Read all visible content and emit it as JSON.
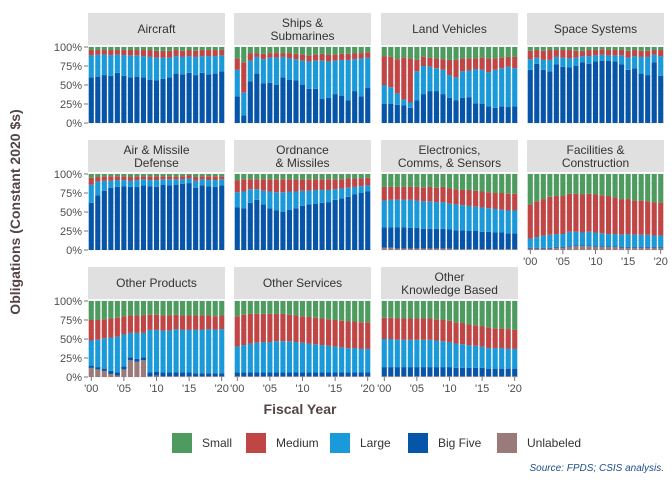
{
  "chart_data": {
    "type": "bar",
    "stacked": true,
    "normalized": true,
    "xlabel": "Fiscal Year",
    "ylabel": "Obligations (Constant 2020 $s)",
    "source": "Source: FPDS; CSIS analysis.",
    "x": [
      2000,
      2001,
      2002,
      2003,
      2004,
      2005,
      2006,
      2007,
      2008,
      2009,
      2010,
      2011,
      2012,
      2013,
      2014,
      2015,
      2016,
      2017,
      2018,
      2019,
      2020
    ],
    "x_tick_labels": [
      "'00",
      "'05",
      "'10",
      "'15",
      "'20"
    ],
    "y_tick_labels": [
      "0%",
      "25%",
      "50%",
      "75%",
      "100%"
    ],
    "ylim": [
      0,
      1
    ],
    "legend": {
      "position": "bottom",
      "entries": [
        {
          "name": "Small",
          "color": "#4d9b5f"
        },
        {
          "name": "Medium",
          "color": "#c04545"
        },
        {
          "name": "Large",
          "color": "#1a9ad9"
        },
        {
          "name": "Big Five",
          "color": "#0655a8"
        },
        {
          "name": "Unlabeled",
          "color": "#9b7a7a"
        }
      ]
    },
    "panels": [
      {
        "title": "Aircraft",
        "unlabeled": [
          0,
          0,
          0,
          0,
          0,
          0,
          0,
          0,
          0,
          0,
          0,
          0,
          0,
          0,
          0,
          0,
          0,
          0,
          0,
          0,
          0
        ],
        "big_five": [
          0.6,
          0.61,
          0.63,
          0.62,
          0.66,
          0.62,
          0.6,
          0.61,
          0.6,
          0.57,
          0.56,
          0.58,
          0.6,
          0.65,
          0.64,
          0.66,
          0.63,
          0.66,
          0.64,
          0.65,
          0.68
        ],
        "large": [
          0.29,
          0.29,
          0.27,
          0.27,
          0.24,
          0.27,
          0.29,
          0.28,
          0.28,
          0.3,
          0.3,
          0.28,
          0.26,
          0.23,
          0.23,
          0.22,
          0.24,
          0.22,
          0.24,
          0.23,
          0.21
        ],
        "medium": [
          0.07,
          0.06,
          0.06,
          0.07,
          0.06,
          0.07,
          0.07,
          0.07,
          0.08,
          0.09,
          0.09,
          0.09,
          0.09,
          0.08,
          0.08,
          0.08,
          0.08,
          0.08,
          0.08,
          0.08,
          0.07
        ]
      },
      {
        "title": "Ships & Submarines",
        "unlabeled": [
          0,
          0,
          0,
          0,
          0,
          0,
          0,
          0,
          0,
          0,
          0,
          0,
          0,
          0,
          0,
          0,
          0,
          0,
          0,
          0,
          0
        ],
        "big_five": [
          0.35,
          0.1,
          0.55,
          0.65,
          0.52,
          0.53,
          0.5,
          0.6,
          0.57,
          0.56,
          0.5,
          0.45,
          0.45,
          0.32,
          0.33,
          0.38,
          0.36,
          0.3,
          0.42,
          0.35,
          0.46
        ],
        "large": [
          0.35,
          0.3,
          0.27,
          0.22,
          0.32,
          0.33,
          0.36,
          0.27,
          0.28,
          0.28,
          0.32,
          0.36,
          0.37,
          0.5,
          0.48,
          0.44,
          0.47,
          0.53,
          0.42,
          0.5,
          0.4
        ],
        "medium": [
          0.15,
          0.4,
          0.1,
          0.05,
          0.07,
          0.06,
          0.06,
          0.05,
          0.07,
          0.07,
          0.08,
          0.08,
          0.08,
          0.09,
          0.09,
          0.08,
          0.08,
          0.08,
          0.08,
          0.07,
          0.07
        ]
      },
      {
        "title": "Land Vehicles",
        "unlabeled": [
          0,
          0,
          0,
          0,
          0,
          0,
          0,
          0,
          0,
          0,
          0,
          0,
          0,
          0,
          0,
          0,
          0,
          0,
          0,
          0,
          0
        ],
        "big_five": [
          0.25,
          0.25,
          0.24,
          0.23,
          0.2,
          0.3,
          0.38,
          0.42,
          0.42,
          0.38,
          0.33,
          0.3,
          0.33,
          0.34,
          0.26,
          0.25,
          0.22,
          0.2,
          0.22,
          0.21,
          0.22
        ],
        "large": [
          0.25,
          0.22,
          0.15,
          0.08,
          0.07,
          0.38,
          0.37,
          0.32,
          0.3,
          0.32,
          0.3,
          0.3,
          0.35,
          0.35,
          0.45,
          0.45,
          0.45,
          0.5,
          0.5,
          0.53,
          0.5
        ],
        "medium": [
          0.38,
          0.4,
          0.45,
          0.55,
          0.58,
          0.15,
          0.12,
          0.12,
          0.13,
          0.14,
          0.2,
          0.23,
          0.17,
          0.16,
          0.14,
          0.16,
          0.18,
          0.15,
          0.14,
          0.13,
          0.15
        ]
      },
      {
        "title": "Space Systems",
        "unlabeled": [
          0,
          0,
          0,
          0,
          0,
          0,
          0,
          0,
          0,
          0,
          0,
          0,
          0,
          0,
          0,
          0,
          0,
          0,
          0,
          0,
          0
        ],
        "big_five": [
          0.7,
          0.78,
          0.7,
          0.68,
          0.77,
          0.74,
          0.73,
          0.75,
          0.8,
          0.78,
          0.81,
          0.82,
          0.82,
          0.81,
          0.77,
          0.7,
          0.72,
          0.65,
          0.63,
          0.8,
          0.62
        ],
        "large": [
          0.14,
          0.08,
          0.13,
          0.15,
          0.1,
          0.12,
          0.12,
          0.11,
          0.08,
          0.1,
          0.08,
          0.08,
          0.07,
          0.08,
          0.12,
          0.16,
          0.16,
          0.22,
          0.24,
          0.1,
          0.26
        ],
        "medium": [
          0.11,
          0.1,
          0.12,
          0.13,
          0.09,
          0.1,
          0.11,
          0.09,
          0.07,
          0.08,
          0.07,
          0.07,
          0.07,
          0.07,
          0.07,
          0.09,
          0.08,
          0.08,
          0.08,
          0.06,
          0.08
        ]
      },
      {
        "title": "Air & Missile Defense",
        "unlabeled": [
          0,
          0,
          0,
          0,
          0,
          0,
          0,
          0,
          0,
          0,
          0,
          0,
          0,
          0,
          0,
          0,
          0,
          0,
          0,
          0,
          0
        ],
        "big_five": [
          0.62,
          0.72,
          0.78,
          0.82,
          0.83,
          0.84,
          0.83,
          0.83,
          0.85,
          0.84,
          0.83,
          0.86,
          0.85,
          0.86,
          0.87,
          0.88,
          0.82,
          0.85,
          0.84,
          0.83,
          0.85
        ],
        "large": [
          0.24,
          0.18,
          0.13,
          0.09,
          0.09,
          0.08,
          0.08,
          0.09,
          0.08,
          0.08,
          0.09,
          0.07,
          0.08,
          0.07,
          0.06,
          0.06,
          0.09,
          0.08,
          0.08,
          0.09,
          0.08
        ],
        "medium": [
          0.09,
          0.06,
          0.06,
          0.06,
          0.05,
          0.05,
          0.05,
          0.05,
          0.04,
          0.05,
          0.05,
          0.04,
          0.04,
          0.04,
          0.04,
          0.04,
          0.05,
          0.04,
          0.05,
          0.05,
          0.04
        ]
      },
      {
        "title": "Ordnance & Missiles",
        "unlabeled": [
          0,
          0,
          0,
          0,
          0,
          0,
          0,
          0,
          0,
          0,
          0,
          0,
          0,
          0,
          0,
          0,
          0,
          0,
          0,
          0,
          0
        ],
        "big_five": [
          0.56,
          0.55,
          0.62,
          0.66,
          0.6,
          0.55,
          0.52,
          0.5,
          0.53,
          0.55,
          0.58,
          0.6,
          0.61,
          0.62,
          0.63,
          0.66,
          0.68,
          0.7,
          0.73,
          0.75,
          0.77
        ],
        "large": [
          0.2,
          0.22,
          0.18,
          0.14,
          0.18,
          0.22,
          0.24,
          0.26,
          0.24,
          0.22,
          0.2,
          0.18,
          0.18,
          0.17,
          0.16,
          0.14,
          0.13,
          0.12,
          0.1,
          0.09,
          0.08
        ],
        "medium": [
          0.16,
          0.16,
          0.13,
          0.13,
          0.15,
          0.16,
          0.17,
          0.17,
          0.16,
          0.16,
          0.15,
          0.15,
          0.14,
          0.14,
          0.14,
          0.13,
          0.12,
          0.12,
          0.11,
          0.1,
          0.1
        ]
      },
      {
        "title": "Electronics, Comms, & Sensors",
        "unlabeled": [
          0.03,
          0.03,
          0.02,
          0.02,
          0.02,
          0.02,
          0.02,
          0.02,
          0.02,
          0.02,
          0.02,
          0.01,
          0.01,
          0.01,
          0.01,
          0.01,
          0.01,
          0.01,
          0.01,
          0.01,
          0.01
        ],
        "big_five": [
          0.27,
          0.27,
          0.28,
          0.28,
          0.27,
          0.27,
          0.26,
          0.26,
          0.26,
          0.26,
          0.25,
          0.25,
          0.25,
          0.24,
          0.24,
          0.23,
          0.23,
          0.22,
          0.22,
          0.21,
          0.21
        ],
        "large": [
          0.35,
          0.36,
          0.36,
          0.36,
          0.37,
          0.36,
          0.36,
          0.36,
          0.35,
          0.35,
          0.34,
          0.34,
          0.33,
          0.33,
          0.32,
          0.32,
          0.31,
          0.31,
          0.3,
          0.3,
          0.3
        ],
        "medium": [
          0.18,
          0.17,
          0.17,
          0.17,
          0.17,
          0.18,
          0.18,
          0.19,
          0.19,
          0.2,
          0.2,
          0.2,
          0.2,
          0.21,
          0.21,
          0.21,
          0.21,
          0.21,
          0.22,
          0.22,
          0.22
        ]
      },
      {
        "title": "Facilities & Construction",
        "unlabeled": [
          0.02,
          0.02,
          0.02,
          0.02,
          0.03,
          0.03,
          0.04,
          0.05,
          0.05,
          0.05,
          0.04,
          0.04,
          0.04,
          0.04,
          0.03,
          0.03,
          0.03,
          0.03,
          0.03,
          0.03,
          0.03
        ],
        "big_five": [
          0.01,
          0.01,
          0.01,
          0.01,
          0.01,
          0.01,
          0.01,
          0.01,
          0.01,
          0.01,
          0.01,
          0.01,
          0.01,
          0.01,
          0.01,
          0.01,
          0.01,
          0.01,
          0.01,
          0.01,
          0.01
        ],
        "large": [
          0.12,
          0.14,
          0.16,
          0.17,
          0.17,
          0.17,
          0.19,
          0.18,
          0.17,
          0.18,
          0.18,
          0.17,
          0.16,
          0.16,
          0.16,
          0.17,
          0.16,
          0.16,
          0.16,
          0.15,
          0.15
        ],
        "medium": [
          0.45,
          0.47,
          0.48,
          0.5,
          0.5,
          0.5,
          0.5,
          0.5,
          0.5,
          0.5,
          0.5,
          0.5,
          0.5,
          0.48,
          0.47,
          0.46,
          0.45,
          0.45,
          0.44,
          0.44,
          0.43
        ]
      },
      {
        "title": "Other Products",
        "unlabeled": [
          0.12,
          0.1,
          0.08,
          0.04,
          0.02,
          0.1,
          0.22,
          0.2,
          0.22,
          0.01,
          0.02,
          0.01,
          0.01,
          0.01,
          0.01,
          0.01,
          0.01,
          0.01,
          0.01,
          0.01,
          0.01
        ],
        "big_five": [
          0.03,
          0.03,
          0.03,
          0.04,
          0.04,
          0.04,
          0.04,
          0.04,
          0.04,
          0.05,
          0.05,
          0.05,
          0.05,
          0.05,
          0.05,
          0.05,
          0.04,
          0.04,
          0.04,
          0.04,
          0.04
        ],
        "large": [
          0.33,
          0.36,
          0.4,
          0.44,
          0.47,
          0.42,
          0.32,
          0.34,
          0.32,
          0.56,
          0.55,
          0.55,
          0.55,
          0.57,
          0.56,
          0.56,
          0.57,
          0.57,
          0.58,
          0.57,
          0.58
        ],
        "medium": [
          0.27,
          0.26,
          0.25,
          0.25,
          0.25,
          0.24,
          0.23,
          0.23,
          0.23,
          0.2,
          0.2,
          0.2,
          0.2,
          0.19,
          0.19,
          0.19,
          0.19,
          0.19,
          0.18,
          0.18,
          0.18
        ]
      },
      {
        "title": "Other Services",
        "unlabeled": [
          0.01,
          0.01,
          0.01,
          0.01,
          0.01,
          0.01,
          0.01,
          0.01,
          0.01,
          0.01,
          0.01,
          0.01,
          0.01,
          0.01,
          0.01,
          0.01,
          0.01,
          0.01,
          0.01,
          0.01,
          0.01
        ],
        "big_five": [
          0.05,
          0.05,
          0.05,
          0.05,
          0.05,
          0.05,
          0.05,
          0.05,
          0.05,
          0.05,
          0.05,
          0.05,
          0.05,
          0.05,
          0.05,
          0.05,
          0.05,
          0.05,
          0.05,
          0.05,
          0.05
        ],
        "large": [
          0.34,
          0.36,
          0.38,
          0.39,
          0.4,
          0.4,
          0.41,
          0.41,
          0.41,
          0.4,
          0.39,
          0.38,
          0.37,
          0.36,
          0.35,
          0.34,
          0.33,
          0.32,
          0.32,
          0.31,
          0.31
        ],
        "medium": [
          0.4,
          0.4,
          0.39,
          0.38,
          0.37,
          0.37,
          0.36,
          0.36,
          0.35,
          0.35,
          0.35,
          0.35,
          0.35,
          0.35,
          0.35,
          0.35,
          0.35,
          0.35,
          0.35,
          0.35,
          0.35
        ]
      },
      {
        "title": "Other Knowledge Based",
        "unlabeled": [
          0.01,
          0.01,
          0.01,
          0.01,
          0.01,
          0.01,
          0.01,
          0.01,
          0.01,
          0.01,
          0.01,
          0.01,
          0.01,
          0.01,
          0.01,
          0.01,
          0.01,
          0.01,
          0.01,
          0.01,
          0.01
        ],
        "big_five": [
          0.12,
          0.12,
          0.12,
          0.12,
          0.12,
          0.12,
          0.12,
          0.12,
          0.12,
          0.12,
          0.12,
          0.11,
          0.11,
          0.11,
          0.11,
          0.11,
          0.1,
          0.1,
          0.1,
          0.1,
          0.1
        ],
        "large": [
          0.37,
          0.37,
          0.36,
          0.36,
          0.36,
          0.36,
          0.36,
          0.36,
          0.35,
          0.34,
          0.33,
          0.32,
          0.31,
          0.3,
          0.29,
          0.28,
          0.27,
          0.27,
          0.27,
          0.26,
          0.26
        ],
        "medium": [
          0.28,
          0.28,
          0.28,
          0.28,
          0.28,
          0.28,
          0.28,
          0.28,
          0.28,
          0.28,
          0.28,
          0.28,
          0.28,
          0.27,
          0.27,
          0.27,
          0.27,
          0.26,
          0.26,
          0.26,
          0.25
        ]
      }
    ]
  }
}
